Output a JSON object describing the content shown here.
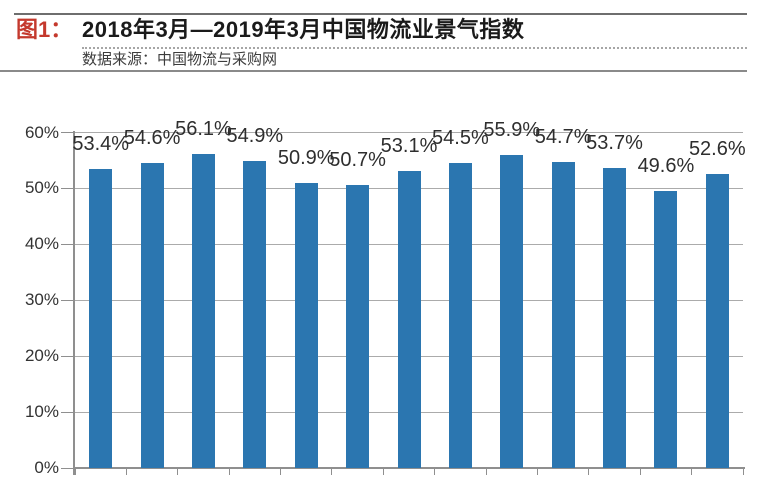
{
  "header": {
    "figure_label": "图1：",
    "title": "2018年3月—2019年3月中国物流业景气指数",
    "source": "数据来源：中国物流与采购网"
  },
  "colors": {
    "figure_label": "#c4392d",
    "title_text": "#1a1a1a",
    "bar": "#2b76b0",
    "gridline": "#ababab",
    "axis": "#8f8f8f",
    "bar_label_text": "#2e2e2e",
    "y_tick_label_text": "#333333"
  },
  "chart_data": {
    "type": "bar",
    "title": "2018年3月—2019年3月中国物流业景气指数",
    "source": "数据来源：中国物流与采购网",
    "values": [
      53.4,
      54.6,
      56.1,
      54.9,
      50.9,
      50.7,
      53.1,
      54.5,
      55.9,
      54.7,
      53.7,
      49.6,
      52.6
    ],
    "bar_labels": [
      "53.4%",
      "54.6%",
      "56.1%",
      "54.9%",
      "50.9%",
      "50.7%",
      "53.1%",
      "54.5%",
      "55.9%",
      "54.7%",
      "53.7%",
      "49.6%",
      "52.6%"
    ],
    "y_ticks": [
      "0%",
      "10%",
      "20%",
      "30%",
      "40%",
      "50%",
      "60%"
    ],
    "ylim": [
      0,
      60
    ],
    "grid": true,
    "legend_position": "none",
    "x_tick_labels_visible": false
  }
}
